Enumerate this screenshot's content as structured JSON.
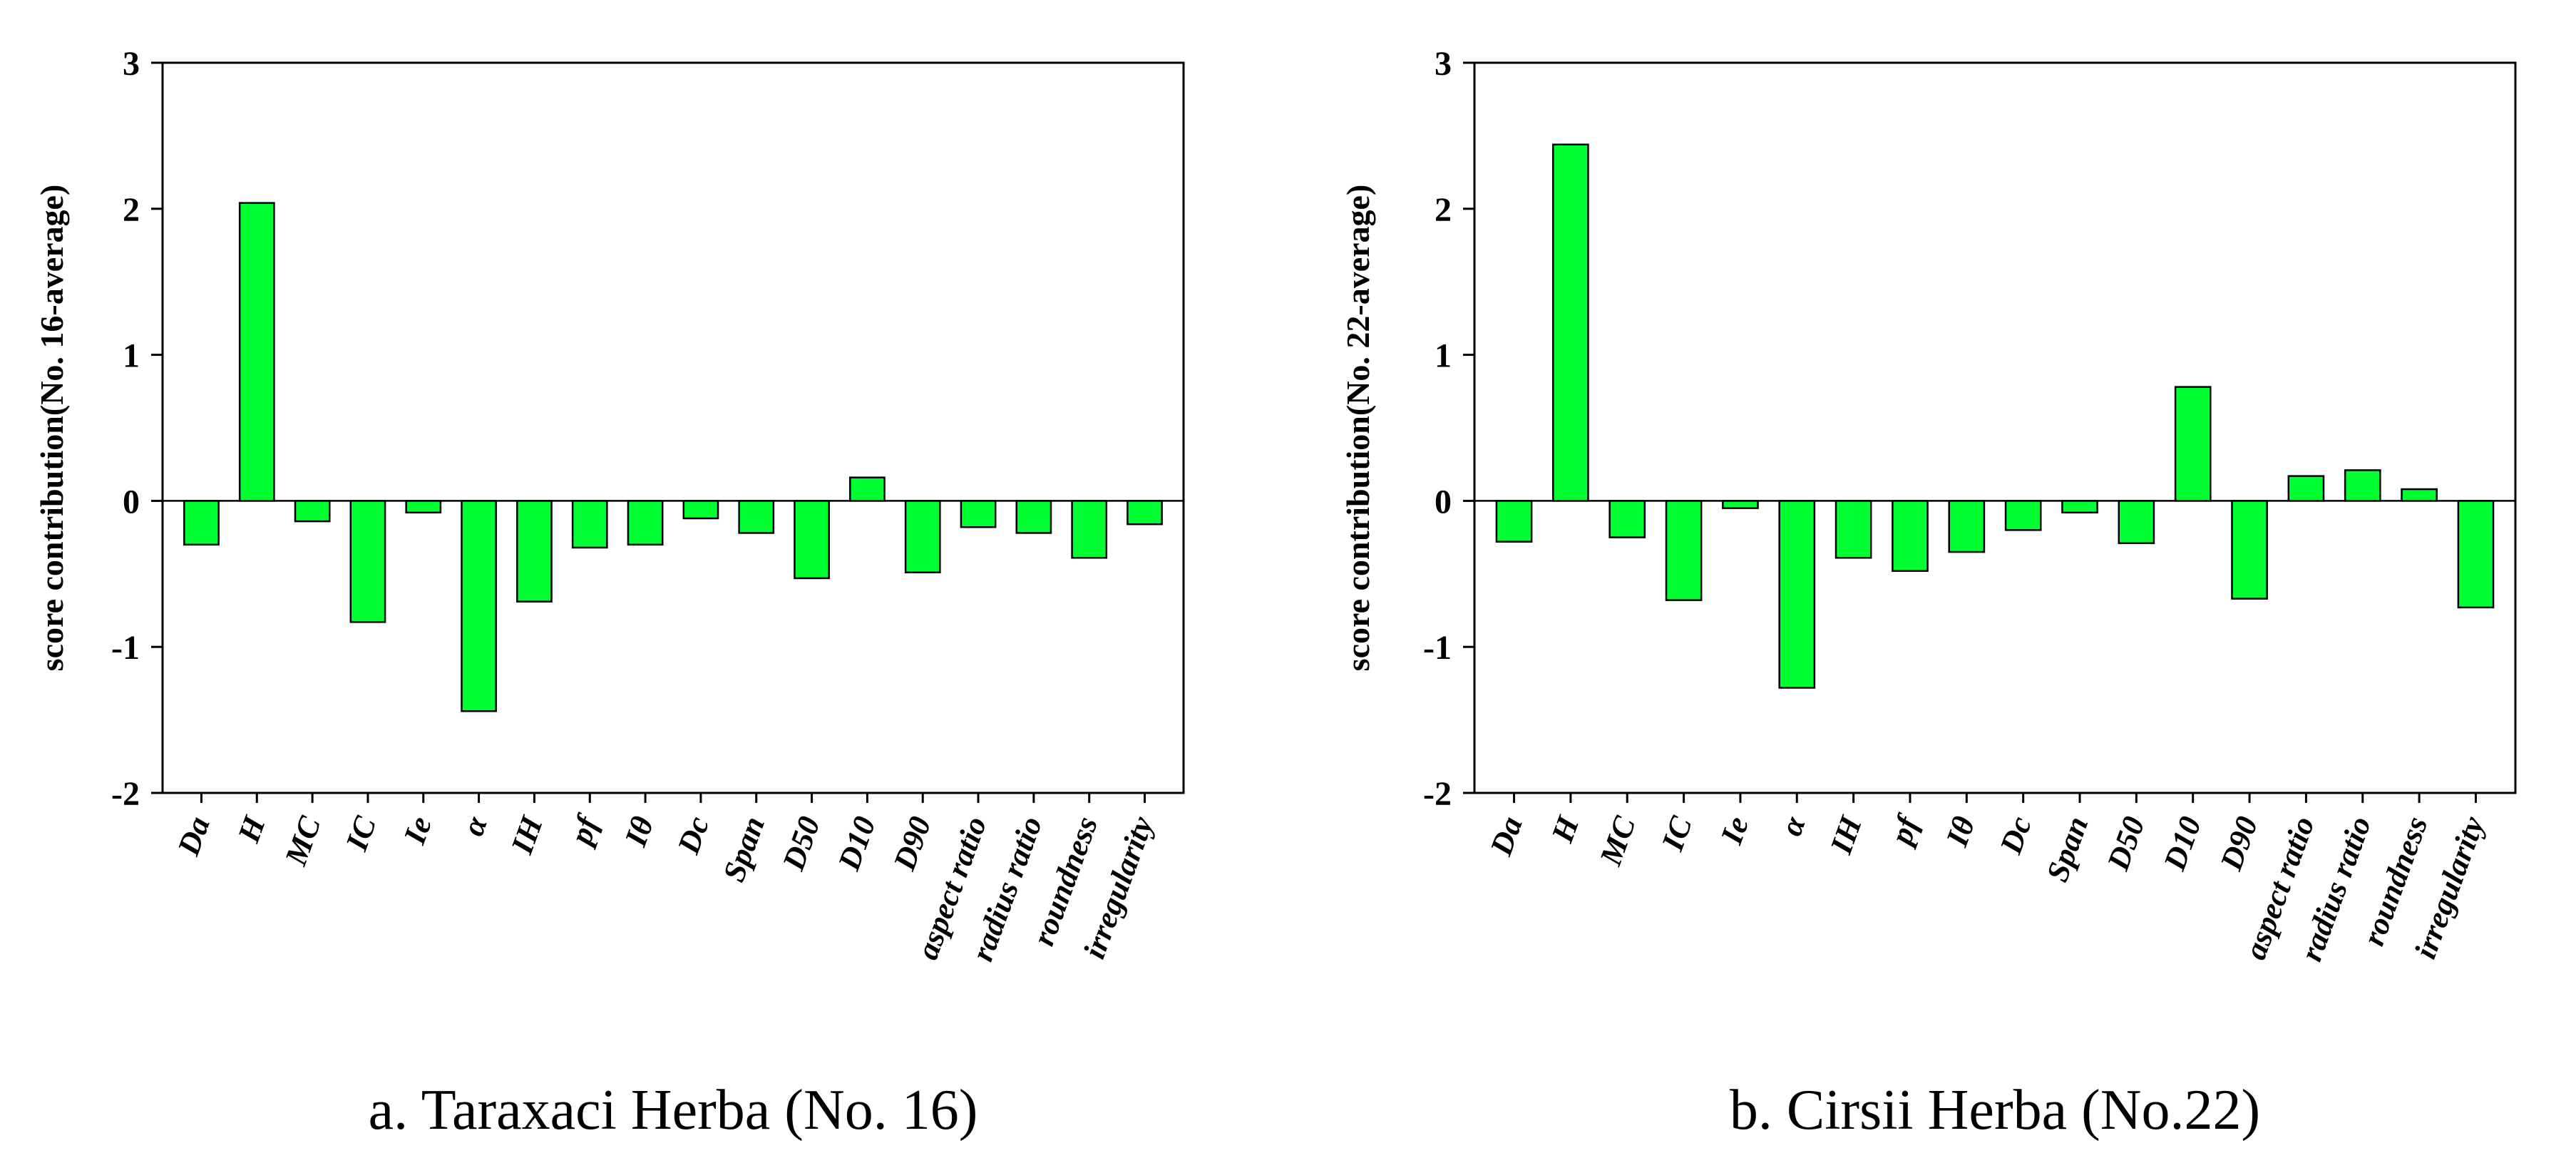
{
  "colors": {
    "bar": "#00ff33",
    "bar_stroke": "#000000",
    "axis": "#000000"
  },
  "chart_data": [
    {
      "type": "bar",
      "caption": "a.  Taraxaci Herba (No. 16)",
      "ylabel": "score contribution(No. 16-average)",
      "xlabel": "",
      "ylim": [
        -2,
        3
      ],
      "yticks": [
        "-2",
        "-1",
        "0",
        "1",
        "2",
        "3"
      ],
      "categories": [
        "Da",
        "H",
        "MC",
        "IC",
        "Ie",
        "α",
        "IH",
        "pf",
        "Iθ",
        "Dc",
        "Span",
        "D50",
        "D10",
        "D90",
        "aspect ratio",
        "radius ratio",
        "roundness",
        "irregularity"
      ],
      "values": [
        -0.3,
        2.04,
        -0.14,
        -0.83,
        -0.08,
        -1.44,
        -0.69,
        -0.32,
        -0.3,
        -0.12,
        -0.22,
        -0.53,
        0.16,
        -0.49,
        -0.18,
        -0.22,
        -0.39,
        -0.16
      ]
    },
    {
      "type": "bar",
      "caption": "b.  Cirsii Herba (No.22)",
      "ylabel": "score contribution(No. 22-average)",
      "xlabel": "",
      "ylim": [
        -2,
        3
      ],
      "yticks": [
        "-2",
        "-1",
        "0",
        "1",
        "2",
        "3"
      ],
      "categories": [
        "Da",
        "H",
        "MC",
        "IC",
        "Ie",
        "α",
        "IH",
        "pf",
        "Iθ",
        "Dc",
        "Span",
        "D50",
        "D10",
        "D90",
        "aspect ratio",
        "radius ratio",
        "roundness",
        "irregularity"
      ],
      "values": [
        -0.28,
        2.44,
        -0.25,
        -0.68,
        -0.05,
        -1.28,
        -0.39,
        -0.48,
        -0.35,
        -0.2,
        -0.08,
        -0.29,
        0.78,
        -0.67,
        0.17,
        0.21,
        0.08,
        -0.73
      ]
    }
  ]
}
